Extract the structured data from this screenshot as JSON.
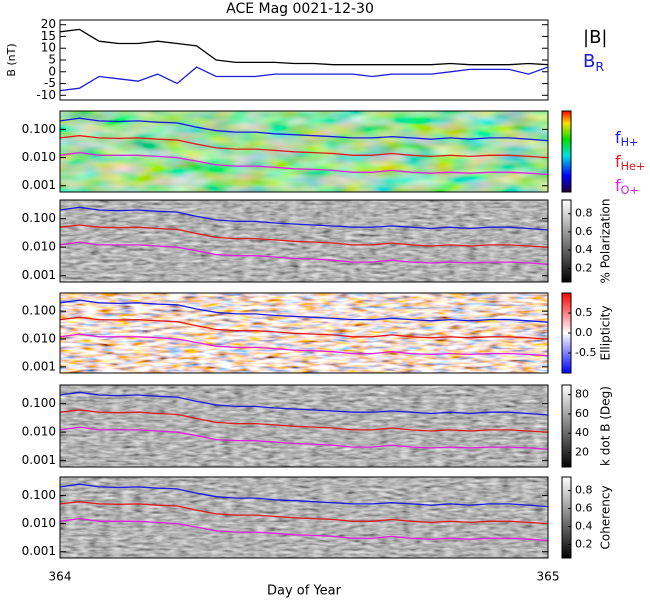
{
  "chart_data": [
    {
      "type": "line",
      "title": "ACE Mag 0021-12-30",
      "ylabel": "B (nT)",
      "x": [
        364.0,
        364.04,
        364.08,
        364.12,
        364.16,
        364.2,
        364.24,
        364.28,
        364.32,
        364.36,
        364.4,
        364.44,
        364.48,
        364.52,
        364.56,
        364.6,
        364.64,
        364.68,
        364.72,
        364.76,
        364.8,
        364.84,
        364.88,
        364.92,
        364.96,
        365.0
      ],
      "xlim": [
        364,
        365
      ],
      "ylim": [
        -12,
        22
      ],
      "yticks": [
        -10,
        -5,
        0,
        5,
        10,
        15,
        20
      ],
      "series": [
        {
          "name": "|B|",
          "color": "#000000",
          "values": [
            17,
            18,
            13,
            12,
            12,
            13,
            12,
            11,
            5,
            4,
            4,
            4,
            3.5,
            3.5,
            3,
            3,
            3,
            3,
            3,
            3,
            3.5,
            3,
            3,
            3,
            3.5,
            3
          ]
        },
        {
          "name": "BR",
          "color": "#1a1ae0",
          "values": [
            -8,
            -7,
            -2,
            -3,
            -4,
            -1,
            -5,
            2,
            -2,
            -2,
            -2,
            -1,
            -1,
            -1,
            -1,
            -1,
            -2,
            -1,
            -1,
            -1,
            0,
            1,
            1,
            1,
            -1,
            2
          ]
        }
      ]
    },
    {
      "type": "spectrogram",
      "palette": "rainbow",
      "x": [
        364.0,
        364.04,
        364.08,
        364.12,
        364.16,
        364.2,
        364.24,
        364.28,
        364.32,
        364.36,
        364.4,
        364.44,
        364.48,
        364.52,
        364.56,
        364.6,
        364.64,
        364.68,
        364.72,
        364.76,
        364.8,
        364.84,
        364.88,
        364.92,
        364.96,
        365.0
      ],
      "xlim": [
        364,
        365
      ],
      "ylim": [
        0.0006,
        0.45
      ],
      "log": true,
      "yticks": [
        {
          "value": 0.1,
          "label": "0.100"
        },
        {
          "value": 0.01,
          "label": "0.010"
        },
        {
          "value": 0.001,
          "label": "0.001"
        }
      ],
      "series": [
        {
          "name": "fH+",
          "color": "#1a1ae0",
          "values": [
            0.2,
            0.25,
            0.2,
            0.19,
            0.2,
            0.18,
            0.17,
            0.12,
            0.09,
            0.08,
            0.08,
            0.07,
            0.065,
            0.06,
            0.055,
            0.05,
            0.05,
            0.055,
            0.05,
            0.045,
            0.05,
            0.045,
            0.05,
            0.05,
            0.045,
            0.04
          ]
        },
        {
          "name": "fHe+",
          "color": "#e01a1a",
          "values": [
            0.05,
            0.06,
            0.05,
            0.048,
            0.05,
            0.045,
            0.042,
            0.03,
            0.022,
            0.02,
            0.02,
            0.018,
            0.016,
            0.015,
            0.014,
            0.012,
            0.012,
            0.014,
            0.012,
            0.011,
            0.012,
            0.011,
            0.012,
            0.012,
            0.011,
            0.01
          ]
        },
        {
          "name": "fO+",
          "color": "#e020e0",
          "values": [
            0.012,
            0.015,
            0.012,
            0.012,
            0.012,
            0.011,
            0.01,
            0.0075,
            0.0055,
            0.005,
            0.005,
            0.0045,
            0.004,
            0.0038,
            0.0035,
            0.003,
            0.003,
            0.0035,
            0.003,
            0.0028,
            0.003,
            0.0028,
            0.003,
            0.003,
            0.0028,
            0.0025
          ]
        }
      ]
    },
    {
      "type": "spectrogram",
      "palette": "gray",
      "colorbar_label": "% Polarization",
      "clim": [
        0.05,
        0.95
      ],
      "cticks": [
        0.2,
        0.4,
        0.6,
        0.8
      ],
      "x": [
        364.0,
        364.04,
        364.08,
        364.12,
        364.16,
        364.2,
        364.24,
        364.28,
        364.32,
        364.36,
        364.4,
        364.44,
        364.48,
        364.52,
        364.56,
        364.6,
        364.64,
        364.68,
        364.72,
        364.76,
        364.8,
        364.84,
        364.88,
        364.92,
        364.96,
        365.0
      ],
      "xlim": [
        364,
        365
      ],
      "ylim": [
        0.0006,
        0.45
      ],
      "log": true,
      "yticks": [
        {
          "value": 0.1,
          "label": "0.100"
        },
        {
          "value": 0.01,
          "label": "0.010"
        },
        {
          "value": 0.001,
          "label": "0.001"
        }
      ],
      "series": [
        {
          "color": "#1a1ae0",
          "values": [
            0.2,
            0.25,
            0.2,
            0.19,
            0.2,
            0.18,
            0.17,
            0.12,
            0.09,
            0.08,
            0.08,
            0.07,
            0.065,
            0.06,
            0.055,
            0.05,
            0.05,
            0.055,
            0.05,
            0.045,
            0.05,
            0.045,
            0.05,
            0.05,
            0.045,
            0.04
          ]
        },
        {
          "color": "#e01a1a",
          "values": [
            0.05,
            0.06,
            0.05,
            0.048,
            0.05,
            0.045,
            0.042,
            0.03,
            0.022,
            0.02,
            0.02,
            0.018,
            0.016,
            0.015,
            0.014,
            0.012,
            0.012,
            0.014,
            0.012,
            0.011,
            0.012,
            0.011,
            0.012,
            0.012,
            0.011,
            0.01
          ]
        },
        {
          "color": "#e020e0",
          "values": [
            0.012,
            0.015,
            0.012,
            0.012,
            0.012,
            0.011,
            0.01,
            0.0075,
            0.0055,
            0.005,
            0.005,
            0.0045,
            0.004,
            0.0038,
            0.0035,
            0.003,
            0.003,
            0.0035,
            0.003,
            0.0028,
            0.003,
            0.0028,
            0.003,
            0.003,
            0.0028,
            0.0025
          ]
        }
      ]
    },
    {
      "type": "spectrogram",
      "palette": "redblue",
      "colorbar_label": "Ellipticity",
      "clim": [
        -1,
        1
      ],
      "cticks": [
        0.5,
        {
          "value": 0,
          "label": "0.0"
        },
        -0.5
      ],
      "x": [
        364.0,
        364.04,
        364.08,
        364.12,
        364.16,
        364.2,
        364.24,
        364.28,
        364.32,
        364.36,
        364.4,
        364.44,
        364.48,
        364.52,
        364.56,
        364.6,
        364.64,
        364.68,
        364.72,
        364.76,
        364.8,
        364.84,
        364.88,
        364.92,
        364.96,
        365.0
      ],
      "xlim": [
        364,
        365
      ],
      "ylim": [
        0.0006,
        0.45
      ],
      "log": true,
      "yticks": [
        {
          "value": 0.1,
          "label": "0.100"
        },
        {
          "value": 0.01,
          "label": "0.010"
        },
        {
          "value": 0.001,
          "label": "0.001"
        }
      ],
      "series": [
        {
          "color": "#1a1ae0",
          "values": [
            0.2,
            0.25,
            0.2,
            0.19,
            0.2,
            0.18,
            0.17,
            0.12,
            0.09,
            0.08,
            0.08,
            0.07,
            0.065,
            0.06,
            0.055,
            0.05,
            0.05,
            0.055,
            0.05,
            0.045,
            0.05,
            0.045,
            0.05,
            0.05,
            0.045,
            0.04
          ]
        },
        {
          "color": "#e01a1a",
          "values": [
            0.05,
            0.06,
            0.05,
            0.048,
            0.05,
            0.045,
            0.042,
            0.03,
            0.022,
            0.02,
            0.02,
            0.018,
            0.016,
            0.015,
            0.014,
            0.012,
            0.012,
            0.014,
            0.012,
            0.011,
            0.012,
            0.011,
            0.012,
            0.012,
            0.011,
            0.01
          ]
        },
        {
          "color": "#e020e0",
          "values": [
            0.012,
            0.015,
            0.012,
            0.012,
            0.012,
            0.011,
            0.01,
            0.0075,
            0.0055,
            0.005,
            0.005,
            0.0045,
            0.004,
            0.0038,
            0.0035,
            0.003,
            0.003,
            0.0035,
            0.003,
            0.0028,
            0.003,
            0.0028,
            0.003,
            0.003,
            0.0028,
            0.0025
          ]
        }
      ]
    },
    {
      "type": "spectrogram",
      "palette": "gray",
      "colorbar_label": "k dot B (Deg)",
      "clim": [
        5,
        90
      ],
      "cticks": [
        20,
        40,
        60,
        80
      ],
      "x": [
        364.0,
        364.04,
        364.08,
        364.12,
        364.16,
        364.2,
        364.24,
        364.28,
        364.32,
        364.36,
        364.4,
        364.44,
        364.48,
        364.52,
        364.56,
        364.6,
        364.64,
        364.68,
        364.72,
        364.76,
        364.8,
        364.84,
        364.88,
        364.92,
        364.96,
        365.0
      ],
      "xlim": [
        364,
        365
      ],
      "ylim": [
        0.0006,
        0.45
      ],
      "log": true,
      "yticks": [
        {
          "value": 0.1,
          "label": "0.100"
        },
        {
          "value": 0.01,
          "label": "0.010"
        },
        {
          "value": 0.001,
          "label": "0.001"
        }
      ],
      "series": [
        {
          "color": "#1a1ae0",
          "values": [
            0.2,
            0.25,
            0.2,
            0.19,
            0.2,
            0.18,
            0.17,
            0.12,
            0.09,
            0.08,
            0.08,
            0.07,
            0.065,
            0.06,
            0.055,
            0.05,
            0.05,
            0.055,
            0.05,
            0.045,
            0.05,
            0.045,
            0.05,
            0.05,
            0.045,
            0.04
          ]
        },
        {
          "color": "#e01a1a",
          "values": [
            0.05,
            0.06,
            0.05,
            0.048,
            0.05,
            0.045,
            0.042,
            0.03,
            0.022,
            0.02,
            0.02,
            0.018,
            0.016,
            0.015,
            0.014,
            0.012,
            0.012,
            0.014,
            0.012,
            0.011,
            0.012,
            0.011,
            0.012,
            0.012,
            0.011,
            0.01
          ]
        },
        {
          "color": "#e020e0",
          "values": [
            0.012,
            0.015,
            0.012,
            0.012,
            0.012,
            0.011,
            0.01,
            0.0075,
            0.0055,
            0.005,
            0.005,
            0.0045,
            0.004,
            0.0038,
            0.0035,
            0.003,
            0.003,
            0.0035,
            0.003,
            0.0028,
            0.003,
            0.0028,
            0.003,
            0.003,
            0.0028,
            0.0025
          ]
        }
      ]
    },
    {
      "type": "spectrogram",
      "palette": "gray",
      "colorbar_label": "Coherency",
      "clim": [
        0.05,
        0.95
      ],
      "cticks": [
        0.2,
        0.4,
        0.6,
        0.8
      ],
      "xlabel": "Day of Year",
      "xticks": [
        364,
        365
      ],
      "x": [
        364.0,
        364.04,
        364.08,
        364.12,
        364.16,
        364.2,
        364.24,
        364.28,
        364.32,
        364.36,
        364.4,
        364.44,
        364.48,
        364.52,
        364.56,
        364.6,
        364.64,
        364.68,
        364.72,
        364.76,
        364.8,
        364.84,
        364.88,
        364.92,
        364.96,
        365.0
      ],
      "xlim": [
        364,
        365
      ],
      "ylim": [
        0.0006,
        0.45
      ],
      "log": true,
      "yticks": [
        {
          "value": 0.1,
          "label": "0.100"
        },
        {
          "value": 0.01,
          "label": "0.010"
        },
        {
          "value": 0.001,
          "label": "0.001"
        }
      ],
      "series": [
        {
          "color": "#1a1ae0",
          "values": [
            0.2,
            0.25,
            0.2,
            0.19,
            0.2,
            0.18,
            0.17,
            0.12,
            0.09,
            0.08,
            0.08,
            0.07,
            0.065,
            0.06,
            0.055,
            0.05,
            0.05,
            0.055,
            0.05,
            0.045,
            0.05,
            0.045,
            0.05,
            0.05,
            0.045,
            0.04
          ]
        },
        {
          "color": "#e01a1a",
          "values": [
            0.05,
            0.06,
            0.05,
            0.048,
            0.05,
            0.045,
            0.042,
            0.03,
            0.022,
            0.02,
            0.02,
            0.018,
            0.016,
            0.015,
            0.014,
            0.012,
            0.012,
            0.014,
            0.012,
            0.011,
            0.012,
            0.011,
            0.012,
            0.012,
            0.011,
            0.01
          ]
        },
        {
          "color": "#e020e0",
          "values": [
            0.012,
            0.015,
            0.012,
            0.012,
            0.012,
            0.011,
            0.01,
            0.0075,
            0.0055,
            0.005,
            0.005,
            0.0045,
            0.004,
            0.0038,
            0.0035,
            0.003,
            0.003,
            0.0035,
            0.003,
            0.0028,
            0.003,
            0.0028,
            0.003,
            0.003,
            0.0028,
            0.0025
          ]
        }
      ]
    }
  ]
}
